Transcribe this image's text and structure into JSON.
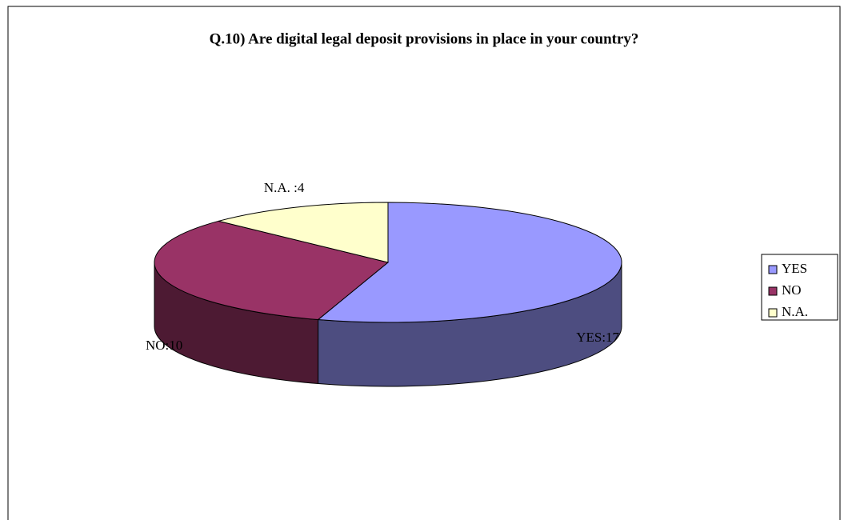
{
  "chart_data": {
    "type": "pie",
    "title": "Q.10) Are digital legal deposit provisions in place in your country?",
    "categories": [
      "YES",
      "NO",
      "N.A."
    ],
    "values": [
      17,
      10,
      4
    ],
    "value_labels": [
      "YES:17",
      "NO:10",
      "N.A. :4"
    ],
    "colors": [
      "#9999ff",
      "#993366",
      "#ffffcc"
    ],
    "side_colors": [
      "#4d4d80",
      "#4d1a33",
      "#808066"
    ],
    "legend": "right"
  }
}
